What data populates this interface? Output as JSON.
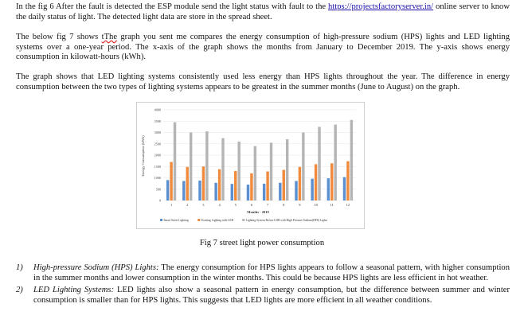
{
  "document": {
    "para1_before_link": "In the fig 6 After the fault is detected the ESP module send the light status with fault to the ",
    "para1_link": "https://projectsfactoryserver.in/",
    "para1_after_link": " online server to know the daily status of light. The detected light data are store in the spread sheet.",
    "para2_before_word": "The below fig 7 shows ",
    "para2_word": "tThe",
    "para2_after_word": " graph you sent me compares the energy consumption of high-pressure sodium (HPS) lights and LED lighting systems over a one-year period. The x-axis of the graph shows the months from January to December 2019. The y-axis shows energy consumption in kilowatt-hours (kWh).",
    "para3": "The graph shows that LED lighting systems consistently used less energy than HPS lights throughout the year. The difference in energy consumption between the two types of lighting systems appears to be greatest in the summer months (June to August) on the graph.",
    "caption": "Fig 7 street light power consumption",
    "list": [
      {
        "num": "1)",
        "term": "High-pressure Sodium (HPS) Lights:",
        "text": " The energy consumption for HPS lights appears to follow a seasonal pattern, with higher consumption in the summer months and lower consumption in the winter months. This could be because HPS lights are less efficient in hot weather."
      },
      {
        "num": "2)",
        "term": "LED Lighting Systems:",
        "text": " LED lights also show a seasonal pattern in energy consumption, but the difference between summer and winter consumption is smaller than for HPS lights. This suggests that LED lights are more efficient in all weather conditions."
      }
    ]
  },
  "chart_data": {
    "type": "bar",
    "ylabel": "Energy Consumption (kWh)",
    "xlabel": "Months - 2019",
    "ylim": [
      0,
      4000
    ],
    "yticks": [
      "0",
      "500",
      "1000",
      "1500",
      "2000",
      "2500",
      "3000",
      "3500",
      "4000"
    ],
    "categories": [
      "1",
      "2",
      "3",
      "4",
      "5",
      "6",
      "7",
      "8",
      "9",
      "10",
      "11",
      "12"
    ],
    "series": [
      {
        "name": "Smart Street Lighting",
        "color": "#5b8fd0",
        "values": [
          900,
          860,
          880,
          780,
          730,
          700,
          740,
          780,
          860,
          960,
          980,
          1030
        ]
      },
      {
        "name": "Existing Lighting with LED",
        "color": "#f08a3c",
        "values": [
          1700,
          1480,
          1500,
          1380,
          1300,
          1200,
          1280,
          1350,
          1480,
          1600,
          1640,
          1730
        ]
      },
      {
        "name": "Lighting System Before LDR with High Pressure Sodium(HPS) Lights",
        "color": "#b5b5b5",
        "values": [
          3450,
          3000,
          3050,
          2750,
          2600,
          2400,
          2550,
          2700,
          3000,
          3250,
          3350,
          3550
        ]
      }
    ],
    "grid": true,
    "legend_position": "bottom"
  }
}
